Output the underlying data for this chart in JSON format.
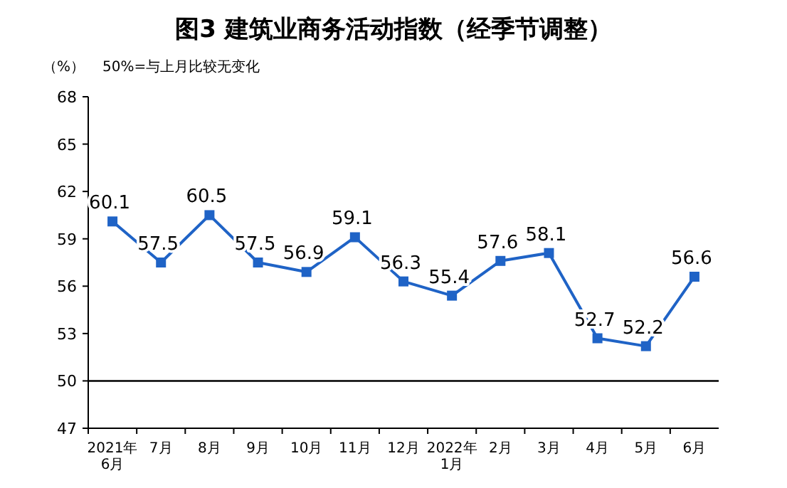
{
  "chart_data": {
    "type": "line",
    "title": "图3  建筑业商务活动指数（经季节调整）",
    "annotations": [
      "（%）",
      "50%=与上月比较无变化"
    ],
    "categories": [
      "2021年\n6月",
      "7月",
      "8月",
      "9月",
      "10月",
      "11月",
      "12月",
      "2022年\n1月",
      "2月",
      "3月",
      "4月",
      "5月",
      "6月"
    ],
    "series": [
      {
        "color": "#1f63c6",
        "values": [
          60.1,
          57.5,
          60.5,
          57.5,
          56.9,
          59.1,
          56.3,
          55.4,
          57.6,
          58.1,
          52.7,
          52.2,
          56.6
        ]
      }
    ],
    "ylim": [
      47,
      68
    ],
    "yticks": [
      47,
      50,
      53,
      56,
      59,
      62,
      65,
      68
    ],
    "ref_lines": [
      {
        "axis": "y",
        "value": 50,
        "color": "#000000"
      }
    ],
    "data_labels": true,
    "marker": "square",
    "line_style": "solid"
  }
}
